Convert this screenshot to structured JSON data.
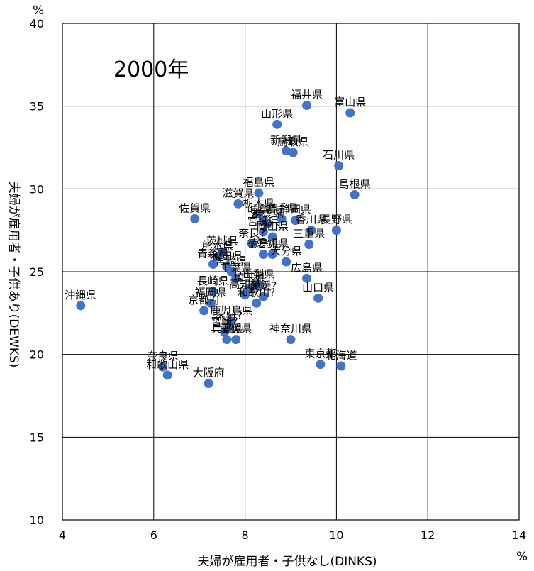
{
  "chart_data": {
    "type": "scatter",
    "title": "2000年",
    "xlabel": "夫婦が雇用者・子供なし(DINKS)",
    "ylabel": "夫婦が雇用者・子供あり(DEWKS)",
    "x_unit": "%",
    "y_unit": "%",
    "xlim": [
      4,
      14
    ],
    "ylim": [
      10,
      40
    ],
    "x_ticks": [
      "4",
      "6",
      "8",
      "10",
      "12",
      "14"
    ],
    "y_ticks": [
      "10",
      "15",
      "20",
      "25",
      "30",
      "35",
      "40"
    ],
    "grid": true,
    "marker_color": "#4472C4",
    "points": [
      {
        "label": "福井県",
        "x": 9.35,
        "y": 35.05
      },
      {
        "label": "富山県",
        "x": 10.3,
        "y": 34.6
      },
      {
        "label": "山形県",
        "x": 8.7,
        "y": 33.9
      },
      {
        "label": "新潟県",
        "x": 8.9,
        "y": 32.3
      },
      {
        "label": "鳥取県",
        "x": 9.05,
        "y": 32.2
      },
      {
        "label": "石川県",
        "x": 10.05,
        "y": 31.4
      },
      {
        "label": "島根県",
        "x": 10.4,
        "y": 29.65
      },
      {
        "label": "福島県",
        "x": 8.3,
        "y": 29.75
      },
      {
        "label": "滋賀県",
        "x": 7.85,
        "y": 29.1
      },
      {
        "label": "佐賀県",
        "x": 6.9,
        "y": 28.2
      },
      {
        "label": "栃木県",
        "x": 8.3,
        "y": 28.5
      },
      {
        "label": "岩手県",
        "x": 8.8,
        "y": 28.2
      },
      {
        "label": "岐阜県",
        "x": 8.4,
        "y": 28.1
      },
      {
        "label": "静岡県",
        "x": 9.1,
        "y": 28.1
      },
      {
        "label": "群馬県",
        "x": 8.5,
        "y": 27.9
      },
      {
        "label": "宮城県",
        "x": 8.4,
        "y": 27.4
      },
      {
        "label": "香川県",
        "x": 9.45,
        "y": 27.5
      },
      {
        "label": "長野県",
        "x": 10.0,
        "y": 27.5
      },
      {
        "label": "岡山県",
        "x": 8.6,
        "y": 27.1
      },
      {
        "label": "奈良?",
        "x": 8.15,
        "y": 26.7
      },
      {
        "label": "三重県",
        "x": 9.4,
        "y": 26.65
      },
      {
        "label": "茨城県",
        "x": 7.5,
        "y": 26.2
      },
      {
        "label": "熊本県",
        "x": 7.4,
        "y": 25.9
      },
      {
        "label": "愛知県",
        "x": 8.6,
        "y": 26.05
      },
      {
        "label": "徳島県",
        "x": 8.4,
        "y": 26.05
      },
      {
        "label": "青森県",
        "x": 7.3,
        "y": 25.45
      },
      {
        "label": "秋田県",
        "x": 7.6,
        "y": 25.3
      },
      {
        "label": "大分県",
        "x": 8.9,
        "y": 25.6
      },
      {
        "label": "宮崎県",
        "x": 7.7,
        "y": 25.0
      },
      {
        "label": "千葉県",
        "x": 7.8,
        "y": 24.6
      },
      {
        "label": "広島県",
        "x": 9.35,
        "y": 24.6
      },
      {
        "label": "山梨県",
        "x": 8.3,
        "y": 24.2
      },
      {
        "label": "埼玉県",
        "x": 8.1,
        "y": 24.0
      },
      {
        "label": "長崎県",
        "x": 7.3,
        "y": 23.8
      },
      {
        "label": "高知県",
        "x": 8.0,
        "y": 23.6
      },
      {
        "label": "愛媛?",
        "x": 8.4,
        "y": 23.5
      },
      {
        "label": "山口県",
        "x": 9.6,
        "y": 23.4
      },
      {
        "label": "沖縄県",
        "x": 4.4,
        "y": 22.95
      },
      {
        "label": "福岡県",
        "x": 7.25,
        "y": 23.1
      },
      {
        "label": "和歌山?",
        "x": 8.25,
        "y": 23.1
      },
      {
        "label": "京都府",
        "x": 7.1,
        "y": 22.65
      },
      {
        "label": "鹿児島県",
        "x": 7.7,
        "y": 22.0
      },
      {
        "label": "大分?",
        "x": 7.65,
        "y": 21.7
      },
      {
        "label": "宮崎?",
        "x": 7.55,
        "y": 21.35
      },
      {
        "label": "神奈川県",
        "x": 9.0,
        "y": 20.9
      },
      {
        "label": "兵庫県",
        "x": 7.6,
        "y": 20.9
      },
      {
        "label": "愛媛県",
        "x": 7.8,
        "y": 20.9
      },
      {
        "label": "東京都",
        "x": 9.65,
        "y": 19.4
      },
      {
        "label": "北海道",
        "x": 10.1,
        "y": 19.3
      },
      {
        "label": "奈良県",
        "x": 6.2,
        "y": 19.25
      },
      {
        "label": "和歌山県",
        "x": 6.3,
        "y": 18.75
      },
      {
        "label": "大阪府",
        "x": 7.2,
        "y": 18.25
      }
    ]
  }
}
